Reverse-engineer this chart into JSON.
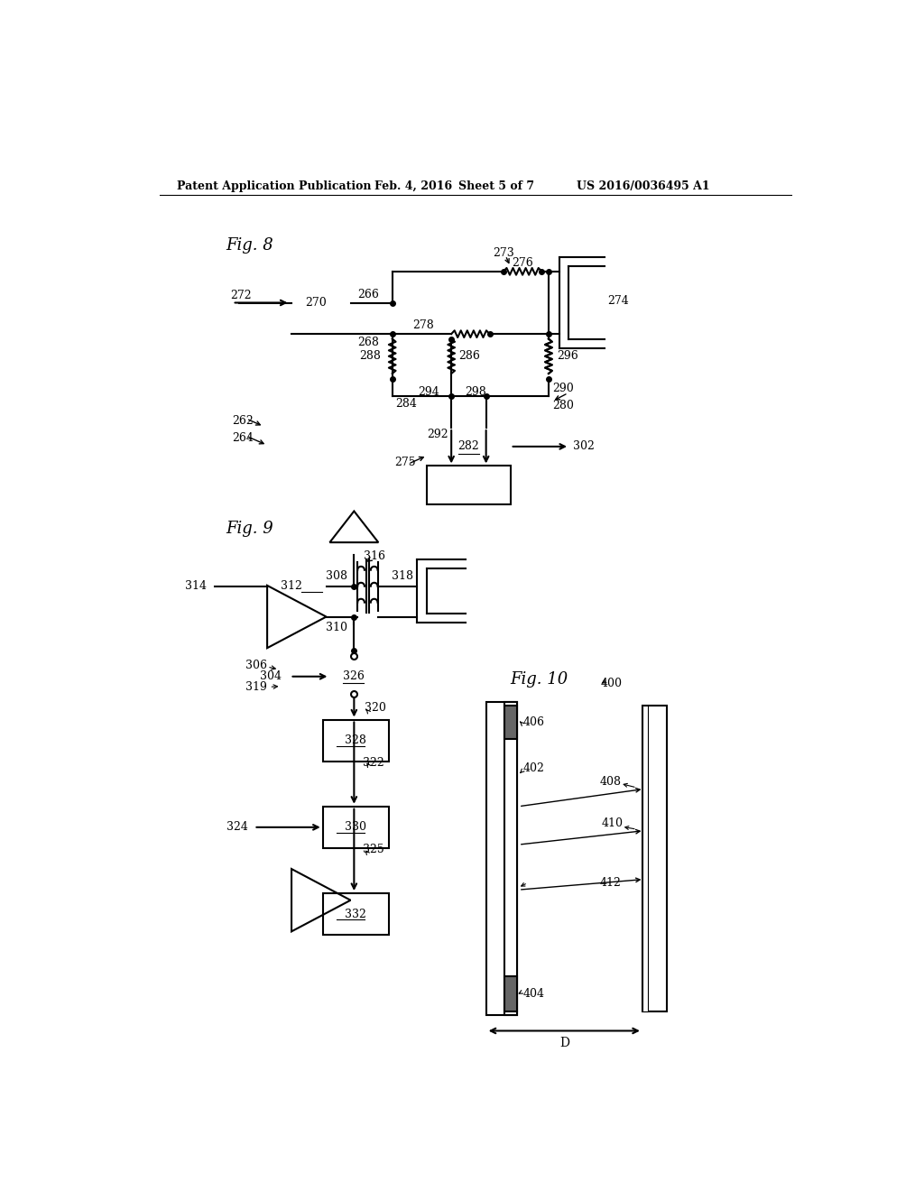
{
  "bg_color": "#ffffff",
  "header_text": "Patent Application Publication",
  "header_date": "Feb. 4, 2016",
  "header_sheet": "Sheet 5 of 7",
  "header_patent": "US 2016/0036495 A1",
  "fig8_label": "Fig. 8",
  "fig9_label": "Fig. 9",
  "fig10_label": "Fig. 10"
}
